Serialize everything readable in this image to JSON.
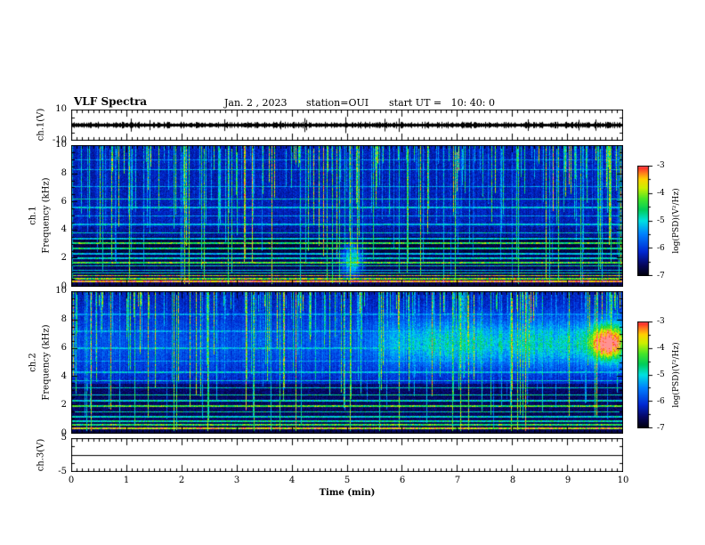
{
  "header": {
    "title": "VLF Spectra",
    "date": "Jan. 2 , 2023",
    "station": "station=OUI",
    "start_ut": "start UT =   10: 40: 0"
  },
  "xaxis": {
    "label": "Time (min)",
    "min": 0,
    "max": 10,
    "ticks": [
      0,
      1,
      2,
      3,
      4,
      5,
      6,
      7,
      8,
      9,
      10
    ]
  },
  "panels": {
    "ch1_wave": {
      "label": "ch.1(V)",
      "ymin": -10,
      "ymax": 10,
      "yticks": [
        10,
        -10
      ]
    },
    "ch1_spec": {
      "channel": "ch.1",
      "label": "Frequency (kHz)",
      "ymin": 0,
      "ymax": 10,
      "yticks": [
        0,
        2,
        4,
        6,
        8,
        10
      ]
    },
    "ch2_spec": {
      "channel": "ch.2",
      "label": "Frequency (kHz)",
      "ymin": 0,
      "ymax": 10,
      "yticks": [
        0,
        2,
        4,
        6,
        8,
        10
      ]
    },
    "ch3_wave": {
      "label": "ch.3(V)",
      "ymin": -5,
      "ymax": 5,
      "yticks": [
        5,
        -5
      ]
    }
  },
  "colorbar": {
    "label": "log(PSD)(V²/Hz)",
    "max": -3,
    "min": -7,
    "ticks": [
      -3,
      -4,
      -5,
      -6,
      -7
    ],
    "scale_colors": [
      "#ff9191",
      "#ff2d2d",
      "#ff7820",
      "#ffd200",
      "#cdf000",
      "#46e628",
      "#00cd5a",
      "#00e1e1",
      "#0082ff",
      "#0028d2",
      "#06065f",
      "#00000a"
    ]
  },
  "chart_data": [
    {
      "type": "line",
      "panel": "ch.1 waveform",
      "xlabel": "Time (min)",
      "ylabel": "ch.1(V)",
      "xlim": [
        0,
        10
      ],
      "ylim": [
        -10,
        10
      ],
      "description": "Continuous broadband noise trace centered at 0 V, envelope roughly ±1.5 V with sporadic spikes to ±4 V across the full 10 minutes."
    },
    {
      "type": "heatmap",
      "panel": "ch.1 spectrogram",
      "xlabel": "Time (min)",
      "ylabel": "Frequency (kHz)",
      "xlim": [
        0,
        10
      ],
      "ylim": [
        0,
        10
      ],
      "zlabel": "log(PSD)(V²/Hz)",
      "zlim": [
        -7,
        -3
      ],
      "background_level": -6.5,
      "features": [
        "dense vertical sferic streaks strongest between 4 and 10 kHz over the whole record",
        "many narrow horizontal interference lines below ~4 kHz",
        "intense red band (~ -3.3) near 0.3-0.6 kHz spanning all times",
        "several full-height bright green vertical lines (e.g. near 2.0 and 5.05 min)",
        "transient cyan/green emission near 5.0-5.2 min around 1-3 kHz",
        "darkest background (~ -7) between roughly 2.5 and 4 kHz"
      ]
    },
    {
      "type": "heatmap",
      "panel": "ch.2 spectrogram",
      "xlabel": "Time (min)",
      "ylabel": "Frequency (kHz)",
      "xlim": [
        0,
        10
      ],
      "ylim": [
        0,
        10
      ],
      "zlabel": "log(PSD)(V²/Hz)",
      "zlim": [
        -7,
        -3
      ],
      "background_level": -6.3,
      "features": [
        "dense vertical sferic streaks across all frequencies",
        "horizontal interference lines below ~3.5 kHz",
        "diffuse cyan emission band 5-8 kHz strengthening after ~5.5 min",
        "bright localized blob near 9.7 min centered at ~6.4 kHz (~ -4)",
        "strong full-height vertical band near 5.05 min"
      ]
    },
    {
      "type": "line",
      "panel": "ch.3 waveform",
      "xlabel": "Time (min)",
      "ylabel": "ch.3(V)",
      "xlim": [
        0,
        10
      ],
      "ylim": [
        -5,
        5
      ],
      "description": "Flat line at 0 V for the entire record (channel inactive)."
    }
  ]
}
